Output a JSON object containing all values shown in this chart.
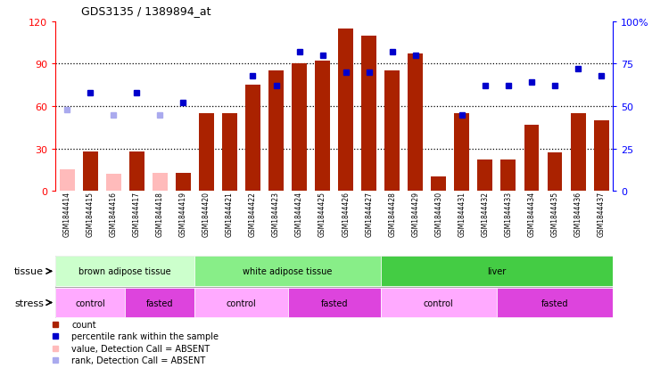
{
  "title": "GDS3135 / 1389894_at",
  "samples": [
    "GSM1844414",
    "GSM1844415",
    "GSM1844416",
    "GSM1844417",
    "GSM1844418",
    "GSM1844419",
    "GSM1844420",
    "GSM1844421",
    "GSM1844422",
    "GSM1844423",
    "GSM1844424",
    "GSM1844425",
    "GSM1844426",
    "GSM1844427",
    "GSM1844428",
    "GSM1844429",
    "GSM1844430",
    "GSM1844431",
    "GSM1844432",
    "GSM1844433",
    "GSM1844434",
    "GSM1844435",
    "GSM1844436",
    "GSM1844437"
  ],
  "count_values": [
    15,
    28,
    12,
    28,
    13,
    13,
    55,
    55,
    75,
    85,
    90,
    92,
    115,
    110,
    85,
    97,
    10,
    55,
    22,
    22,
    47,
    27,
    55,
    50
  ],
  "absent_count": [
    true,
    false,
    true,
    false,
    true,
    false,
    false,
    false,
    false,
    false,
    false,
    false,
    false,
    false,
    false,
    false,
    false,
    false,
    false,
    false,
    false,
    false,
    false,
    false
  ],
  "percentile_values": [
    48,
    58,
    45,
    58,
    45,
    52,
    null,
    null,
    68,
    62,
    82,
    80,
    70,
    70,
    82,
    80,
    null,
    45,
    62,
    62,
    64,
    62,
    72,
    68
  ],
  "absent_rank": [
    true,
    false,
    true,
    false,
    true,
    false,
    false,
    false,
    false,
    false,
    false,
    false,
    false,
    false,
    false,
    false,
    false,
    false,
    false,
    false,
    false,
    false,
    false,
    false
  ],
  "tissue_groups": [
    {
      "label": "brown adipose tissue",
      "start": 0,
      "end": 6,
      "color": "#ccffcc"
    },
    {
      "label": "white adipose tissue",
      "start": 6,
      "end": 14,
      "color": "#88ee88"
    },
    {
      "label": "liver",
      "start": 14,
      "end": 24,
      "color": "#44cc44"
    }
  ],
  "stress_groups": [
    {
      "label": "control",
      "start": 0,
      "end": 3,
      "color": "#ffaaff"
    },
    {
      "label": "fasted",
      "start": 3,
      "end": 6,
      "color": "#dd44dd"
    },
    {
      "label": "control",
      "start": 6,
      "end": 10,
      "color": "#ffaaff"
    },
    {
      "label": "fasted",
      "start": 10,
      "end": 14,
      "color": "#dd44dd"
    },
    {
      "label": "control",
      "start": 14,
      "end": 19,
      "color": "#ffaaff"
    },
    {
      "label": "fasted",
      "start": 19,
      "end": 24,
      "color": "#dd44dd"
    }
  ],
  "bar_color_present": "#aa2200",
  "bar_color_absent": "#ffbbbb",
  "rank_color_present": "#0000cc",
  "rank_color_absent": "#aaaaee",
  "ylim_left": [
    0,
    120
  ],
  "ylim_right": [
    0,
    100
  ],
  "yticks_left": [
    0,
    30,
    60,
    90,
    120
  ],
  "yticks_right": [
    0,
    25,
    50,
    75,
    100
  ],
  "ytick_labels_right": [
    "0",
    "25",
    "50",
    "75",
    "100%"
  ],
  "legend_items": [
    {
      "color": "#aa2200",
      "label": "count"
    },
    {
      "color": "#0000cc",
      "label": "percentile rank within the sample"
    },
    {
      "color": "#ffbbbb",
      "label": "value, Detection Call = ABSENT"
    },
    {
      "color": "#aaaaee",
      "label": "rank, Detection Call = ABSENT"
    }
  ]
}
